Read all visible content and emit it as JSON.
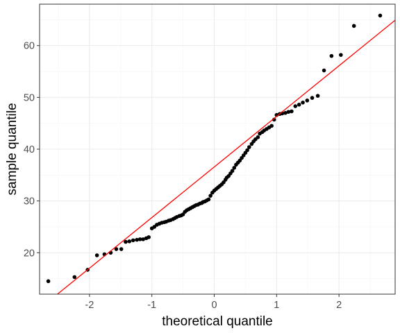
{
  "chart_data": {
    "type": "scatter",
    "title": "",
    "xlabel": "theoretical quantile",
    "ylabel": "sample quantile",
    "xlim": [
      -2.8,
      2.9
    ],
    "ylim": [
      12,
      68
    ],
    "x_ticks": [
      -2,
      -1,
      0,
      1,
      2
    ],
    "x_tick_labels": [
      "-2",
      "-1",
      "0",
      "1",
      "2"
    ],
    "y_ticks": [
      20,
      30,
      40,
      50,
      60
    ],
    "y_tick_labels": [
      "20",
      "30",
      "40",
      "50",
      "60"
    ],
    "grid": true,
    "legend": "none",
    "colors": {
      "points": "#000000",
      "reference_line": "#ff0000",
      "grid_major": "#ebebeb",
      "grid_minor": "#f5f5f5",
      "panel_border": "#333333"
    },
    "reference_line": {
      "x": [
        -2.8,
        2.9
      ],
      "y": [
        9.2,
        64.9
      ]
    },
    "points": [
      [
        -2.66,
        14.5
      ],
      [
        -2.24,
        15.3
      ],
      [
        -2.03,
        16.7
      ],
      [
        -1.88,
        19.5
      ],
      [
        -1.76,
        19.7
      ],
      [
        -1.66,
        20.0
      ],
      [
        -1.57,
        20.7
      ],
      [
        -1.49,
        20.7
      ],
      [
        -1.42,
        22.1
      ],
      [
        -1.36,
        22.2
      ],
      [
        -1.3,
        22.4
      ],
      [
        -1.24,
        22.5
      ],
      [
        -1.19,
        22.6
      ],
      [
        -1.14,
        22.6
      ],
      [
        -1.09,
        22.8
      ],
      [
        -1.05,
        23.0
      ],
      [
        -1.0,
        24.7
      ],
      [
        -0.96,
        25.0
      ],
      [
        -0.92,
        25.4
      ],
      [
        -0.88,
        25.6
      ],
      [
        -0.84,
        25.8
      ],
      [
        -0.8,
        25.9
      ],
      [
        -0.77,
        26.0
      ],
      [
        -0.73,
        26.2
      ],
      [
        -0.7,
        26.3
      ],
      [
        -0.66,
        26.5
      ],
      [
        -0.63,
        26.7
      ],
      [
        -0.6,
        26.9
      ],
      [
        -0.56,
        27.1
      ],
      [
        -0.53,
        27.2
      ],
      [
        -0.5,
        27.4
      ],
      [
        -0.47,
        27.9
      ],
      [
        -0.44,
        28.2
      ],
      [
        -0.41,
        28.4
      ],
      [
        -0.38,
        28.6
      ],
      [
        -0.35,
        28.8
      ],
      [
        -0.32,
        29.0
      ],
      [
        -0.29,
        29.2
      ],
      [
        -0.26,
        29.3
      ],
      [
        -0.23,
        29.5
      ],
      [
        -0.2,
        29.6
      ],
      [
        -0.18,
        29.8
      ],
      [
        -0.15,
        29.9
      ],
      [
        -0.12,
        30.1
      ],
      [
        -0.09,
        30.3
      ],
      [
        -0.06,
        31.0
      ],
      [
        -0.03,
        31.6
      ],
      [
        0.0,
        32.0
      ],
      [
        0.03,
        32.3
      ],
      [
        0.06,
        32.6
      ],
      [
        0.09,
        32.9
      ],
      [
        0.12,
        33.2
      ],
      [
        0.15,
        33.6
      ],
      [
        0.18,
        34.1
      ],
      [
        0.2,
        34.5
      ],
      [
        0.23,
        34.8
      ],
      [
        0.26,
        35.3
      ],
      [
        0.29,
        35.8
      ],
      [
        0.32,
        36.4
      ],
      [
        0.35,
        37.0
      ],
      [
        0.38,
        37.4
      ],
      [
        0.41,
        37.8
      ],
      [
        0.44,
        38.3
      ],
      [
        0.47,
        38.8
      ],
      [
        0.5,
        39.3
      ],
      [
        0.53,
        39.8
      ],
      [
        0.56,
        40.4
      ],
      [
        0.6,
        41.0
      ],
      [
        0.63,
        41.5
      ],
      [
        0.66,
        41.9
      ],
      [
        0.7,
        42.3
      ],
      [
        0.73,
        43.0
      ],
      [
        0.77,
        43.3
      ],
      [
        0.8,
        43.6
      ],
      [
        0.84,
        43.9
      ],
      [
        0.88,
        44.2
      ],
      [
        0.92,
        44.5
      ],
      [
        0.96,
        45.7
      ],
      [
        1.0,
        46.6
      ],
      [
        1.05,
        46.8
      ],
      [
        1.09,
        46.9
      ],
      [
        1.14,
        47.0
      ],
      [
        1.19,
        47.2
      ],
      [
        1.24,
        47.3
      ],
      [
        1.3,
        48.3
      ],
      [
        1.36,
        48.6
      ],
      [
        1.42,
        49.0
      ],
      [
        1.49,
        49.4
      ],
      [
        1.57,
        49.9
      ],
      [
        1.66,
        50.3
      ],
      [
        1.76,
        55.2
      ],
      [
        1.88,
        58.0
      ],
      [
        2.03,
        58.2
      ],
      [
        2.24,
        63.8
      ],
      [
        2.66,
        65.8
      ]
    ]
  }
}
